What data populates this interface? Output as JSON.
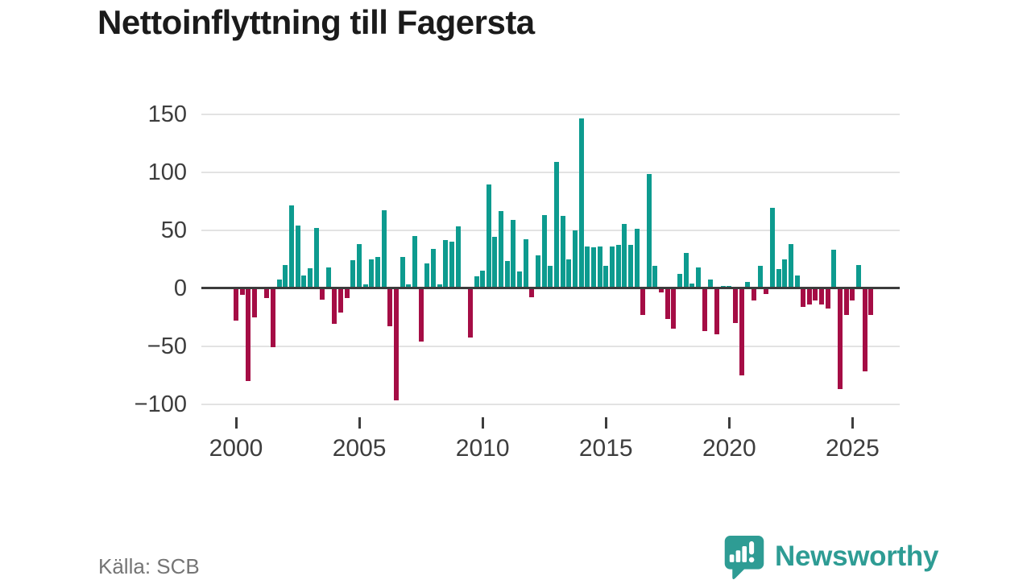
{
  "title": "Nettoinflyttning till Fagersta",
  "source": "Källa: SCB",
  "branding": {
    "name": "Newsworthy"
  },
  "colors": {
    "positive": "#0d9b8f",
    "negative": "#a50d45",
    "logo_teal": "#2e9c94",
    "grid": "#e3e3e3",
    "axis": "#3c3c3c",
    "text": "#3d3d3d",
    "title_text": "#1b1b1b",
    "source_text": "#757575"
  },
  "chart_data": {
    "type": "bar",
    "title": "Nettoinflyttning till Fagersta",
    "xlabel": "",
    "ylabel": "",
    "frequency": "quarterly",
    "start_period": "2000Q1",
    "end_period": "2025Q4",
    "x_tick_years": [
      2000,
      2005,
      2010,
      2015,
      2020,
      2025
    ],
    "y_ticks": [
      150,
      100,
      50,
      0,
      -50,
      -100
    ],
    "ylim": [
      -110,
      160
    ],
    "grid": "horizontal",
    "legend": "none",
    "series": [
      {
        "name": "Nettoinflyttning",
        "values": [
          -28,
          -6,
          -80,
          -25,
          0,
          -9,
          -51,
          7,
          20,
          71,
          54,
          11,
          17,
          52,
          -10,
          18,
          -31,
          -21,
          -9,
          24,
          38,
          3,
          25,
          27,
          67,
          -33,
          -97,
          27,
          3,
          45,
          -46,
          21,
          34,
          3,
          41,
          40,
          53,
          0,
          -43,
          10,
          15,
          89,
          44,
          66,
          23,
          59,
          14,
          42,
          -8,
          28,
          63,
          19,
          109,
          62,
          25,
          50,
          146,
          36,
          35,
          36,
          19,
          36,
          37,
          55,
          37,
          51,
          -23,
          98,
          19,
          -4,
          -27,
          -35,
          12,
          30,
          4,
          18,
          -37,
          7,
          -40,
          2,
          2,
          -30,
          -75,
          5,
          -11,
          19,
          -5,
          69,
          16,
          25,
          38,
          11,
          -16,
          -14,
          -11,
          -14,
          -18,
          33,
          -87,
          -23,
          -11,
          20,
          -72,
          -23
        ]
      }
    ]
  }
}
